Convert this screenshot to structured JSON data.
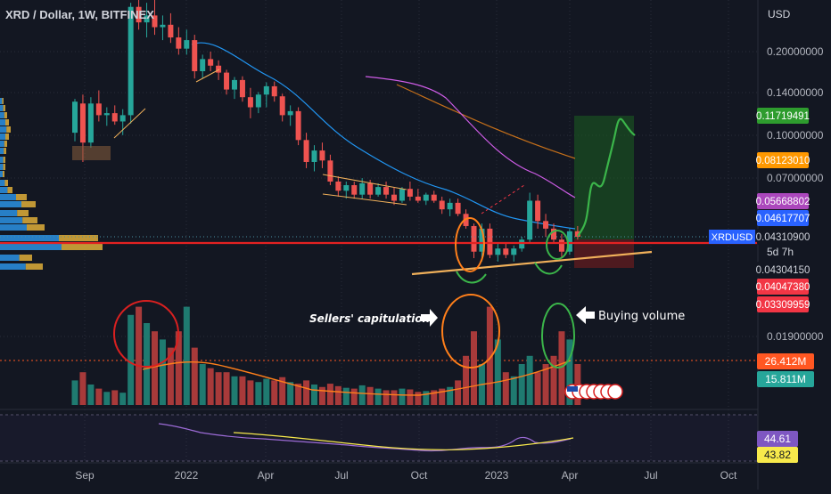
{
  "header": {
    "title": "XRD / Dollar, 1W, BITFINEX",
    "currency": "USD"
  },
  "colors": {
    "bg": "#131722",
    "up": "#26a69a",
    "down": "#ef5350",
    "ma_blue": "#2196f3",
    "ma_purple": "#ce5ce6",
    "ma_orange": "#c6701a",
    "support": "#f0b05a",
    "resistance": "#e32222",
    "target_zone": "#1b5e20",
    "stop_zone": "#7f1d1d",
    "annotation_orange": "#ff7f1a",
    "annotation_green": "#3bb54a",
    "annotation_red": "#d92020",
    "rsi": "#9c6bd6"
  },
  "price_scale": {
    "ticks": [
      "0.20000000",
      "0.14000000",
      "0.10000000",
      "0.07000000",
      "0.01900000"
    ],
    "badges": [
      {
        "value": "0.11719491",
        "color": "#2e9c2e",
        "text_color": "#ffffff"
      },
      {
        "value": "0.08123010",
        "color": "#ff9800",
        "text_color": "#ffffff"
      },
      {
        "value": "0.05668802",
        "color": "#ab47bc",
        "text_color": "#ffffff"
      },
      {
        "value": "0.04617707",
        "color": "#2962ff",
        "text_color": "#ffffff"
      },
      {
        "value": "0.04310900",
        "color": "#131722",
        "text_color": "#d1d4dc"
      },
      {
        "value": "0.04304150",
        "color": "#131722",
        "text_color": "#d1d4dc"
      },
      {
        "value": "0.04047380",
        "color": "#f23645",
        "text_color": "#ffffff"
      },
      {
        "value": "0.03309959",
        "color": "#f23645",
        "text_color": "#ffffff"
      }
    ],
    "symbol_label": "XRDUSD",
    "countdown": "5d 7h"
  },
  "volume_scale": {
    "badges": [
      {
        "value": "26.412M",
        "color": "#ff5722"
      },
      {
        "value": "15.811M",
        "color": "#26a69a"
      }
    ]
  },
  "rsi_scale": {
    "badges": [
      {
        "value": "44.61",
        "color": "#7e57c2",
        "text_color": "#ffffff"
      },
      {
        "value": "43.82",
        "color": "#f7e94b",
        "text_color": "#131722"
      }
    ]
  },
  "time_axis": [
    "Sep",
    "2022",
    "Apr",
    "Jul",
    "Oct",
    "2023",
    "Apr",
    "Jul",
    "Oct"
  ],
  "annotations": {
    "sellers": "Sellers' capitulation",
    "buyers": "Buying volume"
  },
  "chart_data": {
    "type": "candlestick",
    "title": "XRD / Dollar, 1W, BITFINEX",
    "y_scale": "log",
    "ylim": [
      0.03,
      0.26
    ],
    "x_range": [
      "2021-08",
      "2023-10"
    ],
    "candles": [
      [
        0.102,
        0.135,
        0.095,
        0.132
      ],
      [
        0.13,
        0.14,
        0.08,
        0.094
      ],
      [
        0.094,
        0.137,
        0.09,
        0.13
      ],
      [
        0.13,
        0.145,
        0.112,
        0.118
      ],
      [
        0.118,
        0.126,
        0.108,
        0.12
      ],
      [
        0.12,
        0.128,
        0.109,
        0.112
      ],
      [
        0.112,
        0.124,
        0.1,
        0.118
      ],
      [
        0.118,
        0.3,
        0.11,
        0.29
      ],
      [
        0.29,
        0.34,
        0.24,
        0.255
      ],
      [
        0.255,
        0.3,
        0.225,
        0.27
      ],
      [
        0.27,
        0.32,
        0.23,
        0.245
      ],
      [
        0.245,
        0.27,
        0.22,
        0.25
      ],
      [
        0.25,
        0.275,
        0.215,
        0.225
      ],
      [
        0.225,
        0.245,
        0.195,
        0.205
      ],
      [
        0.205,
        0.24,
        0.195,
        0.22
      ],
      [
        0.22,
        0.23,
        0.16,
        0.17
      ],
      [
        0.17,
        0.195,
        0.16,
        0.188
      ],
      [
        0.188,
        0.2,
        0.17,
        0.178
      ],
      [
        0.178,
        0.186,
        0.158,
        0.168
      ],
      [
        0.168,
        0.172,
        0.14,
        0.146
      ],
      [
        0.146,
        0.162,
        0.135,
        0.158
      ],
      [
        0.158,
        0.163,
        0.132,
        0.137
      ],
      [
        0.137,
        0.148,
        0.115,
        0.126
      ],
      [
        0.126,
        0.143,
        0.12,
        0.14
      ],
      [
        0.14,
        0.155,
        0.126,
        0.15
      ],
      [
        0.15,
        0.156,
        0.132,
        0.138
      ],
      [
        0.138,
        0.141,
        0.112,
        0.118
      ],
      [
        0.118,
        0.128,
        0.108,
        0.122
      ],
      [
        0.122,
        0.126,
        0.092,
        0.096
      ],
      [
        0.096,
        0.102,
        0.076,
        0.08
      ],
      [
        0.08,
        0.092,
        0.074,
        0.088
      ],
      [
        0.088,
        0.094,
        0.076,
        0.081
      ],
      [
        0.081,
        0.085,
        0.066,
        0.068
      ],
      [
        0.068,
        0.071,
        0.06,
        0.063
      ],
      [
        0.063,
        0.068,
        0.059,
        0.066
      ],
      [
        0.066,
        0.068,
        0.059,
        0.061
      ],
      [
        0.061,
        0.07,
        0.059,
        0.067
      ],
      [
        0.067,
        0.069,
        0.059,
        0.061
      ],
      [
        0.061,
        0.067,
        0.06,
        0.065
      ],
      [
        0.065,
        0.068,
        0.059,
        0.061
      ],
      [
        0.061,
        0.065,
        0.056,
        0.058
      ],
      [
        0.058,
        0.065,
        0.057,
        0.064
      ],
      [
        0.064,
        0.068,
        0.058,
        0.06
      ],
      [
        0.06,
        0.064,
        0.057,
        0.058
      ],
      [
        0.058,
        0.062,
        0.056,
        0.061
      ],
      [
        0.061,
        0.063,
        0.057,
        0.058
      ],
      [
        0.058,
        0.06,
        0.052,
        0.054
      ],
      [
        0.054,
        0.059,
        0.051,
        0.057
      ],
      [
        0.057,
        0.059,
        0.051,
        0.052
      ],
      [
        0.052,
        0.054,
        0.046,
        0.047
      ],
      [
        0.047,
        0.048,
        0.036,
        0.038
      ],
      [
        0.038,
        0.048,
        0.035,
        0.046
      ],
      [
        0.046,
        0.048,
        0.036,
        0.037
      ],
      [
        0.037,
        0.041,
        0.035,
        0.039
      ],
      [
        0.039,
        0.041,
        0.036,
        0.037
      ],
      [
        0.037,
        0.04,
        0.035,
        0.039
      ],
      [
        0.039,
        0.043,
        0.038,
        0.042
      ],
      [
        0.042,
        0.062,
        0.041,
        0.058
      ],
      [
        0.058,
        0.061,
        0.046,
        0.049
      ],
      [
        0.049,
        0.052,
        0.043,
        0.046
      ],
      [
        0.046,
        0.048,
        0.041,
        0.042
      ],
      [
        0.042,
        0.044,
        0.036,
        0.038
      ],
      [
        0.038,
        0.046,
        0.037,
        0.045
      ],
      [
        0.045,
        0.047,
        0.042,
        0.043
      ]
    ],
    "volume": [
      3,
      4,
      2.5,
      2,
      1.6,
      1.8,
      1.5,
      11,
      12,
      10,
      9,
      8,
      7,
      9,
      12,
      7,
      5,
      4.5,
      4,
      4,
      3.5,
      3.5,
      3,
      2.8,
      3.2,
      3,
      3.4,
      2.8,
      2.6,
      3,
      2.5,
      2.2,
      2.6,
      2.3,
      2.1,
      2,
      2.4,
      2.2,
      2,
      1.8,
      1.8,
      2,
      1.9,
      1.6,
      1.7,
      1.8,
      2,
      2.2,
      3,
      6,
      9,
      5,
      12,
      8,
      4,
      3.5,
      5,
      6,
      4,
      5,
      6,
      9,
      8,
      5
    ],
    "rsi": [
      56,
      55,
      54,
      53,
      52,
      52,
      51,
      50,
      48,
      46,
      45,
      44,
      43,
      42,
      41,
      40,
      40,
      39,
      38,
      38,
      37,
      38,
      38,
      39,
      40,
      40,
      41,
      42,
      42,
      43,
      42,
      41,
      40,
      38,
      38,
      39,
      40,
      44,
      48,
      46,
      44.6
    ],
    "levels": {
      "resistance": 0.0431,
      "target": 0.1172,
      "stop": 0.0405
    }
  }
}
